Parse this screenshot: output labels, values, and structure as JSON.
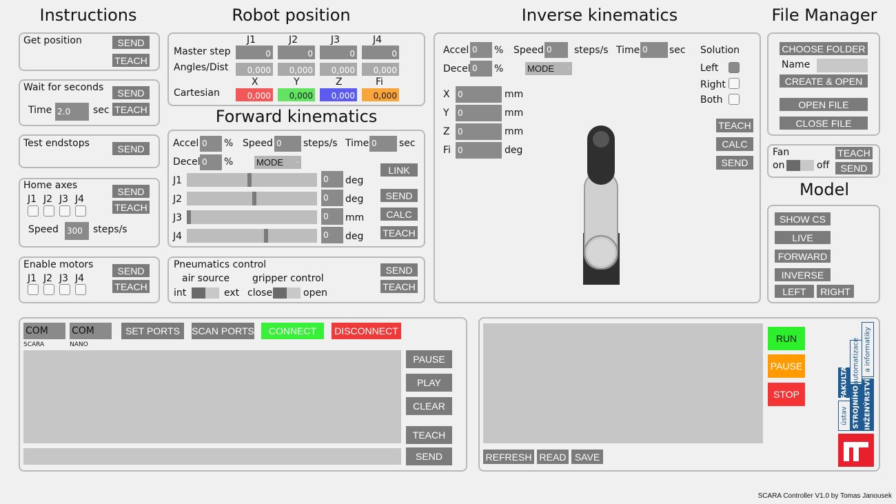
{
  "titles": {
    "instructions": "Instructions",
    "robot_position": "Robot position",
    "inverse_kinematics": "Inverse kinematics",
    "file_manager": "File Manager",
    "forward_kinematics": "Forward kinematics",
    "model": "Model"
  },
  "instructions": {
    "get_position": {
      "label": "Get position",
      "send": "SEND",
      "teach": "TEACH"
    },
    "wait": {
      "label": "Wait for seconds",
      "time_label": "Time",
      "time_value": "2.0",
      "unit": "sec",
      "send": "SEND",
      "teach": "TEACH"
    },
    "endstops": {
      "label": "Test endstops",
      "send": "SEND"
    },
    "home": {
      "label": "Home axes",
      "joints": [
        "J1",
        "J2",
        "J3",
        "J4"
      ],
      "speed_label": "Speed",
      "speed_value": "300",
      "unit": "steps/s",
      "send": "SEND",
      "teach": "TEACH"
    },
    "motors": {
      "label": "Enable motors",
      "joints": [
        "J1",
        "J2",
        "J3",
        "J4"
      ],
      "send": "SEND",
      "teach": "TEACH"
    }
  },
  "robot_position": {
    "columns": [
      "J1",
      "J2",
      "J3",
      "J4"
    ],
    "rows": [
      {
        "label": "Master step",
        "values": [
          "0",
          "0",
          "0",
          "0"
        ]
      },
      {
        "label": "Angles/Dist",
        "values": [
          "0,000",
          "0,000",
          "0,000",
          "0,000"
        ]
      }
    ],
    "cartesian": {
      "label": "Cartesian",
      "columns": [
        "X",
        "Y",
        "Z",
        "Fi"
      ],
      "values": [
        "0,000",
        "0,000",
        "0,000",
        "0,000"
      ]
    }
  },
  "forward": {
    "accel_label": "Accel",
    "accel_value": "0",
    "pct": "%",
    "speed_label": "Speed",
    "speed_value": "0",
    "speed_unit": "steps/s",
    "time_label": "Time",
    "time_value": "0",
    "time_unit": "sec",
    "decel_label": "Decel",
    "decel_value": "0",
    "mode": "MODE",
    "joints": [
      {
        "label": "J1",
        "value": "0",
        "unit": "deg",
        "level": 0.48
      },
      {
        "label": "J2",
        "value": "0",
        "unit": "deg",
        "level": 0.52
      },
      {
        "label": "J3",
        "value": "0",
        "unit": "mm",
        "level": 0.0
      },
      {
        "label": "J4",
        "value": "0",
        "unit": "deg",
        "level": 0.6
      }
    ],
    "link": "LINK",
    "send": "SEND",
    "calc": "CALC",
    "teach": "TEACH"
  },
  "pneumatics": {
    "label": "Pneumatics control",
    "air_label": "air source",
    "air_left": "int",
    "air_right": "ext",
    "grip_label": "gripper control",
    "grip_left": "close",
    "grip_right": "open",
    "send": "SEND",
    "teach": "TEACH"
  },
  "inverse": {
    "accel_label": "Accel",
    "accel_value": "0",
    "pct": "%",
    "speed_label": "Speed",
    "speed_value": "0",
    "speed_unit": "steps/s",
    "time_label": "Time",
    "time_value": "0",
    "time_unit": "sec",
    "decel_label": "Decel",
    "decel_value": "0",
    "mode": "MODE",
    "solution_label": "Solution",
    "solutions": [
      {
        "label": "Left",
        "checked": true
      },
      {
        "label": "Right",
        "checked": false
      },
      {
        "label": "Both",
        "checked": false
      }
    ],
    "coords": [
      {
        "label": "X",
        "value": "0",
        "unit": "mm"
      },
      {
        "label": "Y",
        "value": "0",
        "unit": "mm"
      },
      {
        "label": "Z",
        "value": "0",
        "unit": "mm"
      },
      {
        "label": "Fi",
        "value": "0",
        "unit": "deg"
      }
    ],
    "teach": "TEACH",
    "calc": "CALC",
    "send": "SEND"
  },
  "file_manager": {
    "choose": "CHOOSE FOLDER",
    "name_label": "Name",
    "name_value": "",
    "create": "CREATE & OPEN",
    "open": "OPEN FILE",
    "close": "CLOSE FILE"
  },
  "fan": {
    "label": "Fan",
    "on": "on",
    "off": "off",
    "teach": "TEACH",
    "send": "SEND"
  },
  "model": {
    "show_cs": "SHOW CS",
    "live": "LIVE",
    "forward": "FORWARD",
    "inverse": "INVERSE",
    "left": "LEFT",
    "right": "RIGHT"
  },
  "console": {
    "com1": "COM",
    "com1_caption": "SCARA",
    "com2": "COM",
    "com2_caption": "NANO",
    "set_ports": "SET PORTS",
    "scan_ports": "SCAN PORTS",
    "connect": "CONNECT",
    "disconnect": "DISCONNECT",
    "pause": "PAUSE",
    "play": "PLAY",
    "clear": "CLEAR",
    "teach": "TEACH",
    "send": "SEND"
  },
  "program": {
    "run": "RUN",
    "pause": "PAUSE",
    "stop": "STOP",
    "refresh": "REFRESH",
    "read": "READ",
    "save": "SAVE"
  },
  "logo": {
    "line1": "FAKULTA",
    "line1b": "ústav",
    "line2": "STROJNÍHO",
    "line2b": "automatizace",
    "line3": "INŽENÝRSTVÍ",
    "line3b": "a informatiky"
  },
  "footer": "SCARA Controller V1.0 by Tomas Janousek",
  "colors": {
    "connect": "#38f038",
    "disconnect": "#f03a3a",
    "run": "#2cf02c",
    "pause": "#ff9a00",
    "stop": "#f53535",
    "x": "#f25858",
    "y": "#62e462",
    "z": "#5b5bf0",
    "fi": "#f9a53a",
    "logo_blue": "#1f5a93",
    "logo_red": "#e8202e"
  }
}
